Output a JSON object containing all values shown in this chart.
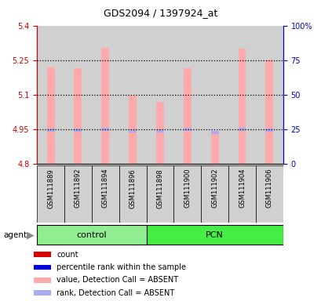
{
  "title": "GDS2094 / 1397924_at",
  "samples": [
    "GSM111889",
    "GSM111892",
    "GSM111894",
    "GSM111896",
    "GSM111898",
    "GSM111900",
    "GSM111902",
    "GSM111904",
    "GSM111906"
  ],
  "groups": [
    "control",
    "control",
    "control",
    "control",
    "PCN",
    "PCN",
    "PCN",
    "PCN",
    "PCN"
  ],
  "ylim_left": [
    4.8,
    5.4
  ],
  "ylim_right": [
    0,
    100
  ],
  "yticks_left": [
    4.8,
    4.95,
    5.1,
    5.25,
    5.4
  ],
  "yticks_right": [
    0,
    25,
    50,
    75,
    100
  ],
  "ytick_labels_left": [
    "4.8",
    "4.95",
    "5.1",
    "5.25",
    "5.4"
  ],
  "ytick_labels_right": [
    "0",
    "25",
    "50",
    "75",
    "100%"
  ],
  "bar_values": [
    5.22,
    5.215,
    5.305,
    5.095,
    5.07,
    5.215,
    4.938,
    5.3,
    5.25
  ],
  "rank_values": [
    24.5,
    24.5,
    25.0,
    24.0,
    24.0,
    25.0,
    22.8,
    25.0,
    24.5
  ],
  "dotted_lines": [
    4.95,
    5.1,
    5.25
  ],
  "bar_color_absent": "#FFAAAA",
  "rank_color_absent": "#AAAAEE",
  "background_color": "#ffffff",
  "left_axis_color": "#CC0000",
  "right_axis_color": "#0000CC",
  "title_color": "black",
  "sample_col_color": "#D0D0D0",
  "group_control_color": "#90EE90",
  "group_pcn_color": "#44EE44",
  "legend_items": [
    {
      "label": "count",
      "color": "#DD0000"
    },
    {
      "label": "percentile rank within the sample",
      "color": "#0000DD"
    },
    {
      "label": "value, Detection Call = ABSENT",
      "color": "#FFAAAA"
    },
    {
      "label": "rank, Detection Call = ABSENT",
      "color": "#AAAAEE"
    }
  ],
  "bar_width": 0.75,
  "n_samples": 9
}
